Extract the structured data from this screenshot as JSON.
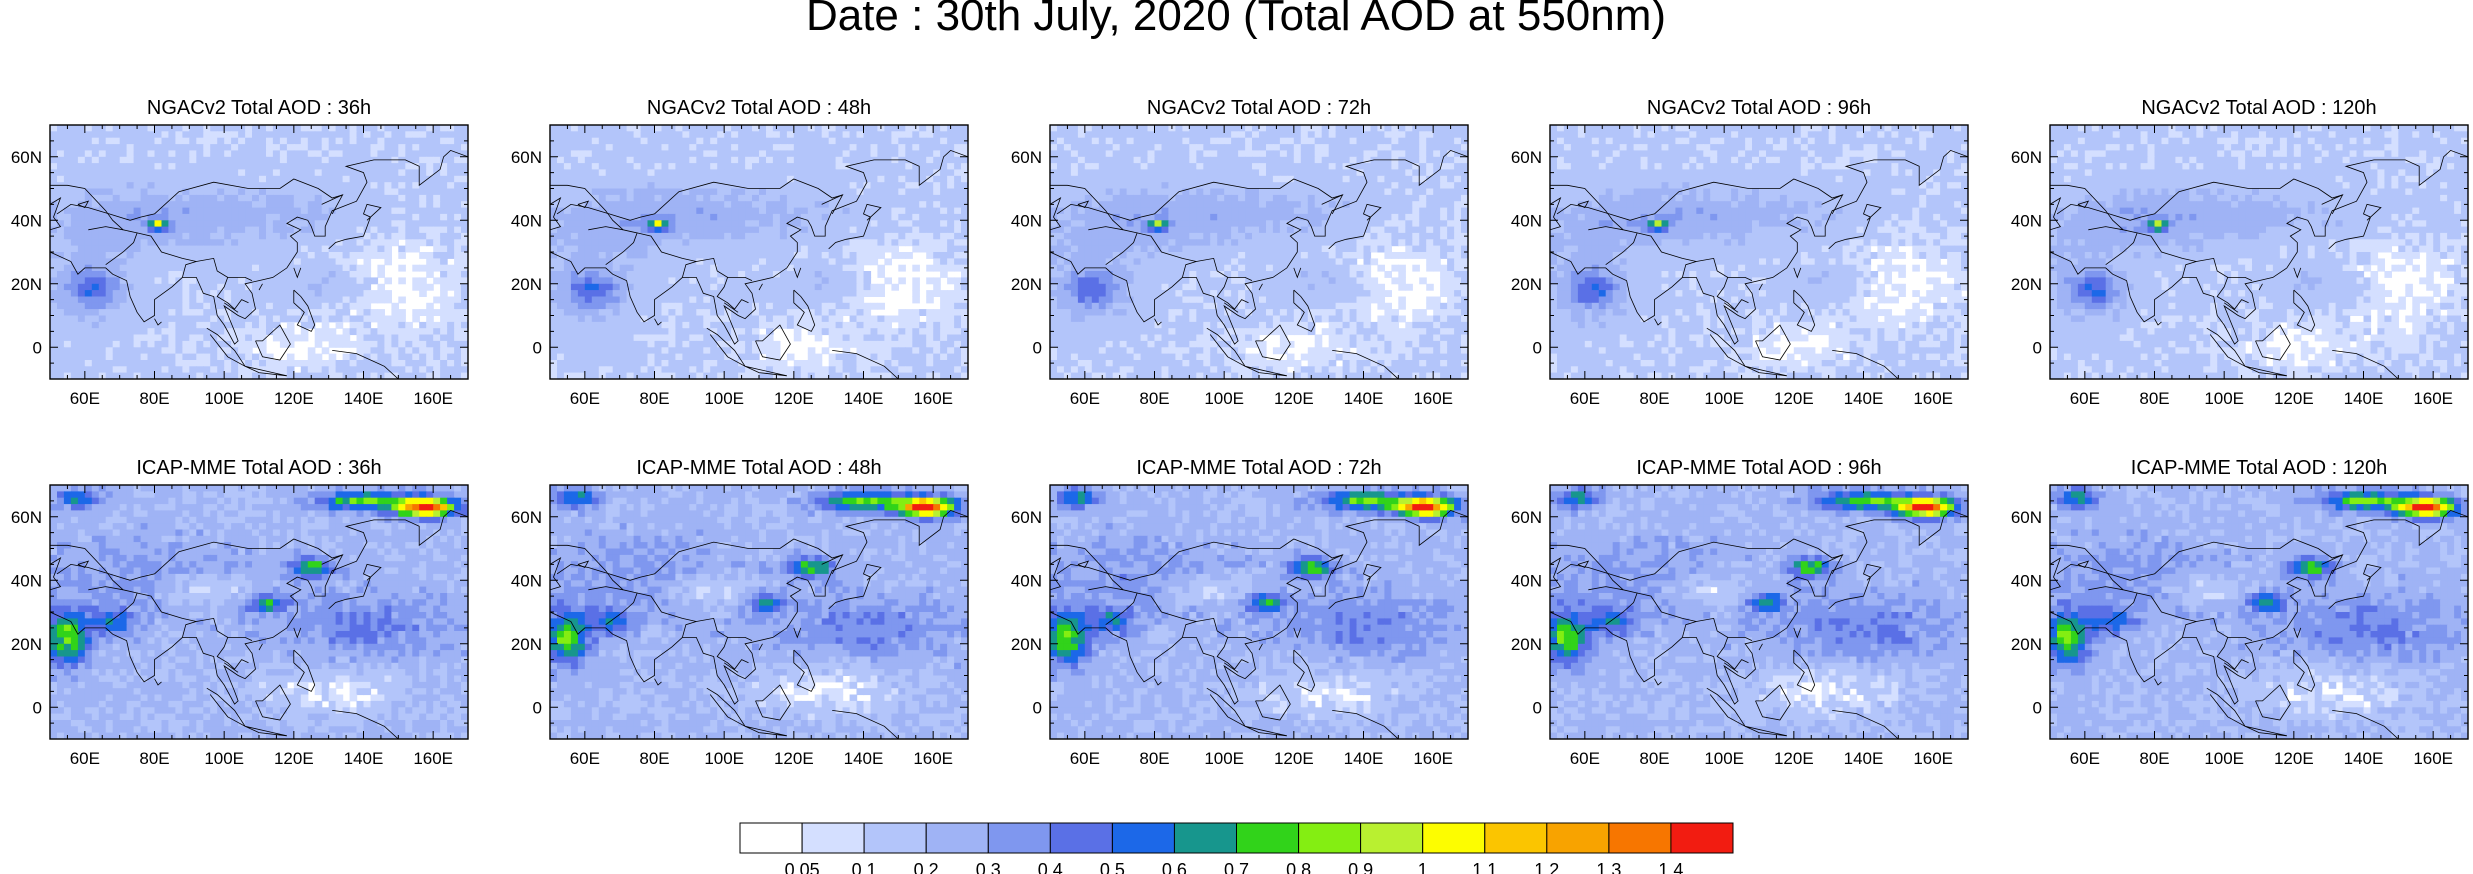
{
  "title": "Date : 30th July, 2020 (Total AOD at 550nm)",
  "lon_labels": [
    "60E",
    "80E",
    "100E",
    "120E",
    "140E",
    "160E"
  ],
  "lat_labels": [
    "60N",
    "40N",
    "20N",
    "0"
  ],
  "domain": {
    "lon": [
      50,
      170
    ],
    "lat": [
      -10,
      70
    ]
  },
  "panels": [
    {
      "title": "NGACv2 Total AOD : 36h",
      "model": "NGACv2",
      "lead": "36h"
    },
    {
      "title": "NGACv2 Total AOD : 48h",
      "model": "NGACv2",
      "lead": "48h"
    },
    {
      "title": "NGACv2 Total AOD : 72h",
      "model": "NGACv2",
      "lead": "72h"
    },
    {
      "title": "NGACv2 Total AOD : 96h",
      "model": "NGACv2",
      "lead": "96h"
    },
    {
      "title": "NGACv2 Total AOD : 120h",
      "model": "NGACv2",
      "lead": "120h"
    },
    {
      "title": "ICAP-MME Total AOD : 36h",
      "model": "ICAP-MME",
      "lead": "36h"
    },
    {
      "title": "ICAP-MME Total AOD : 48h",
      "model": "ICAP-MME",
      "lead": "48h"
    },
    {
      "title": "ICAP-MME Total AOD : 72h",
      "model": "ICAP-MME",
      "lead": "72h"
    },
    {
      "title": "ICAP-MME Total AOD : 96h",
      "model": "ICAP-MME",
      "lead": "96h"
    },
    {
      "title": "ICAP-MME Total AOD : 120h",
      "model": "ICAP-MME",
      "lead": "120h"
    }
  ],
  "colorbar": {
    "labels": [
      "0.05",
      "0.1",
      "0.2",
      "0.3",
      "0.4",
      "0.5",
      "0.6",
      "0.7",
      "0.8",
      "0.9",
      "1",
      "1.1",
      "1.2",
      "1.3",
      "1.4"
    ],
    "colors": [
      "#ffffff",
      "#d4dfff",
      "#b3c5fa",
      "#9fb3f5",
      "#7f97ef",
      "#5a70e6",
      "#1c68e8",
      "#17968d",
      "#31d31a",
      "#84ee12",
      "#b9f030",
      "#fdfd00",
      "#fbc500",
      "#f8a300",
      "#f77600",
      "#f21c11"
    ]
  },
  "features": {
    "ngac": [
      {
        "lon": 80,
        "lat": 38,
        "aod": 0.9,
        "kind": "dust"
      },
      {
        "lon": 63,
        "lat": 18,
        "aod": 0.4,
        "kind": "arabian-sea"
      }
    ],
    "icap": [
      {
        "lon": 155,
        "lat": 62,
        "aod": 1.4,
        "kind": "siberia-smoke"
      },
      {
        "lon": 125,
        "lat": 43,
        "aod": 0.9,
        "kind": "ne-china"
      },
      {
        "lon": 55,
        "lat": 22,
        "aod": 0.9,
        "kind": "arabia"
      }
    ]
  }
}
